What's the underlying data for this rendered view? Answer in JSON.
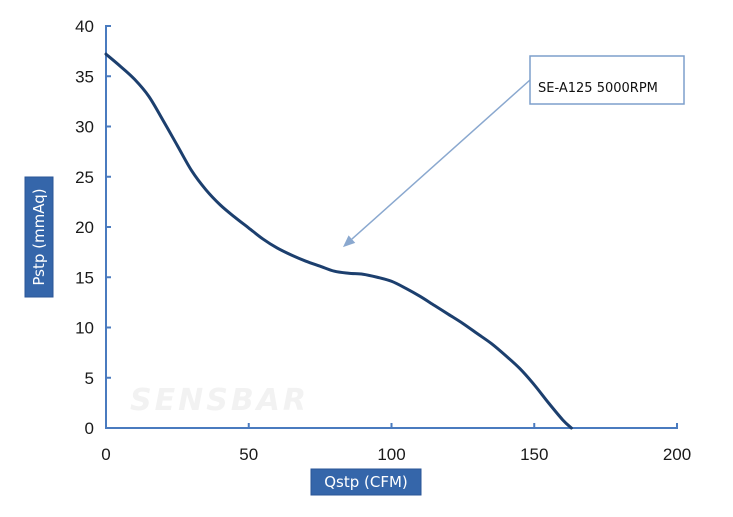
{
  "chart_data": {
    "type": "line",
    "title": "",
    "xlabel": "Qstp (CFM)",
    "ylabel": "Pstp (mmAq)",
    "xlim": [
      0,
      200
    ],
    "ylim": [
      0,
      40
    ],
    "x_ticks": [
      0,
      50,
      100,
      150,
      200
    ],
    "y_ticks": [
      0,
      5,
      10,
      15,
      20,
      25,
      30,
      35,
      40
    ],
    "grid": false,
    "legend": "none",
    "annotation": {
      "text": "SE-A125 5000RPM",
      "points_to": {
        "x": 83,
        "y": 18
      }
    },
    "watermark": "SENSBAR",
    "series": [
      {
        "name": "SE-A125 5000RPM",
        "color": "#1c3f6e",
        "x": [
          0,
          5,
          10,
          15,
          20,
          25,
          30,
          35,
          40,
          45,
          50,
          55,
          60,
          65,
          70,
          75,
          80,
          85,
          90,
          95,
          100,
          105,
          110,
          115,
          120,
          125,
          130,
          135,
          140,
          145,
          150,
          155,
          160,
          163
        ],
        "y": [
          37.2,
          36.0,
          34.7,
          33.0,
          30.6,
          28.1,
          25.6,
          23.7,
          22.2,
          21.0,
          19.9,
          18.8,
          17.9,
          17.2,
          16.6,
          16.1,
          15.6,
          15.4,
          15.3,
          15.0,
          14.6,
          13.9,
          13.1,
          12.2,
          11.3,
          10.4,
          9.4,
          8.4,
          7.2,
          5.9,
          4.3,
          2.5,
          0.8,
          0
        ]
      }
    ]
  }
}
